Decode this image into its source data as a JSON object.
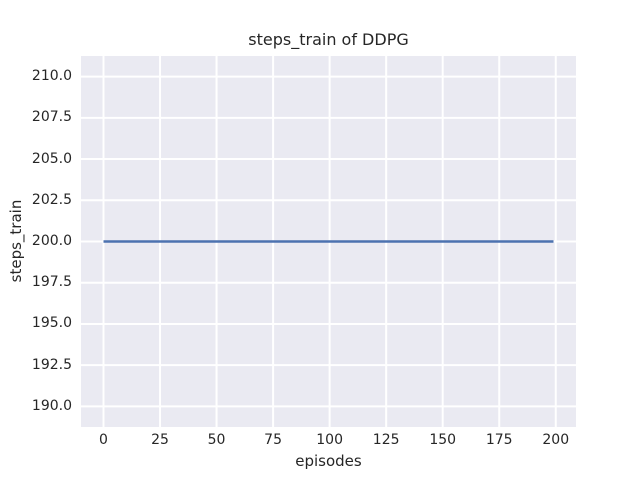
{
  "chart_data": {
    "type": "line",
    "title": "steps_train of DDPG",
    "xlabel": "episodes",
    "ylabel": "steps_train",
    "x_ticks": [
      0,
      25,
      50,
      75,
      100,
      125,
      150,
      175,
      200
    ],
    "x_tick_labels": [
      "0",
      "25",
      "50",
      "75",
      "100",
      "125",
      "150",
      "175",
      "200"
    ],
    "y_ticks": [
      190.0,
      192.5,
      195.0,
      197.5,
      200.0,
      202.5,
      205.0,
      207.5,
      210.0
    ],
    "y_tick_labels": [
      "190.0",
      "192.5",
      "195.0",
      "197.5",
      "200.0",
      "202.5",
      "205.0",
      "207.5",
      "210.0"
    ],
    "xlim": [
      -9.95,
      208.95
    ],
    "ylim": [
      188.75,
      211.25
    ],
    "grid": true,
    "legend": false,
    "series": [
      {
        "name": "steps_train",
        "x_start": 0,
        "x_end": 199,
        "constant_y": 200,
        "color": "#4C72B0",
        "linewidth": 2.5
      }
    ],
    "colors": {
      "plot_background": "#EAEAF2",
      "gridline": "#FFFFFF",
      "text": "#262626"
    }
  }
}
